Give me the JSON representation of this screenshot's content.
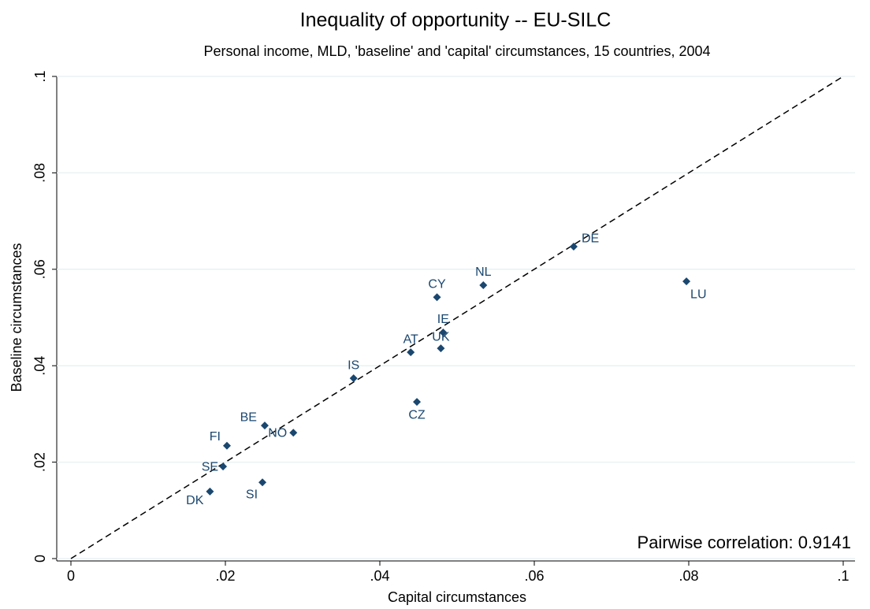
{
  "chart_data": {
    "type": "scatter",
    "title": "Inequality of opportunity -- EU-SILC",
    "subtitle": "Personal income, MLD, 'baseline' and 'capital' circumstances, 15 countries, 2004",
    "x_label": "Capital circumstances",
    "y_label": "Baseline circumstances",
    "point_labels": [
      "DE",
      "LU",
      "NL",
      "CY",
      "IE",
      "UK",
      "AT",
      "IS",
      "CZ",
      "BE",
      "NO",
      "FI",
      "SE",
      "SI",
      "DK"
    ],
    "x": [
      0.0651,
      0.0797,
      0.0534,
      0.0474,
      0.0482,
      0.0479,
      0.044,
      0.0366,
      0.0448,
      0.0251,
      0.0288,
      0.0202,
      0.0197,
      0.0248,
      0.018
    ],
    "values": [
      0.0647,
      0.0575,
      0.0567,
      0.0542,
      0.0469,
      0.0436,
      0.0428,
      0.0374,
      0.0325,
      0.0276,
      0.0261,
      0.0234,
      0.0191,
      0.0158,
      0.0139
    ],
    "color": "#1a476f",
    "reference_line": {
      "x": [
        0,
        0.1
      ],
      "y": [
        0,
        0.1
      ]
    },
    "annotation": "Pairwise correlation: 0.9141",
    "xlim": [
      0,
      0.1
    ],
    "ylim": [
      0,
      0.1
    ],
    "xticks": [
      0,
      {
        "value": 0.02,
        "label": ".02"
      },
      {
        "value": 0.04,
        "label": ".04"
      },
      {
        "value": 0.06,
        "label": ".06"
      },
      {
        "value": 0.08,
        "label": ".08"
      },
      {
        "value": 0.1,
        "label": ".1"
      }
    ],
    "yticks": [
      0,
      {
        "value": 0.02,
        "label": ".02"
      },
      {
        "value": 0.04,
        "label": ".04"
      },
      {
        "value": 0.06,
        "label": ".06"
      },
      {
        "value": 0.08,
        "label": ".08"
      },
      {
        "value": 0.1,
        "label": ".1"
      }
    ],
    "grid": true
  }
}
